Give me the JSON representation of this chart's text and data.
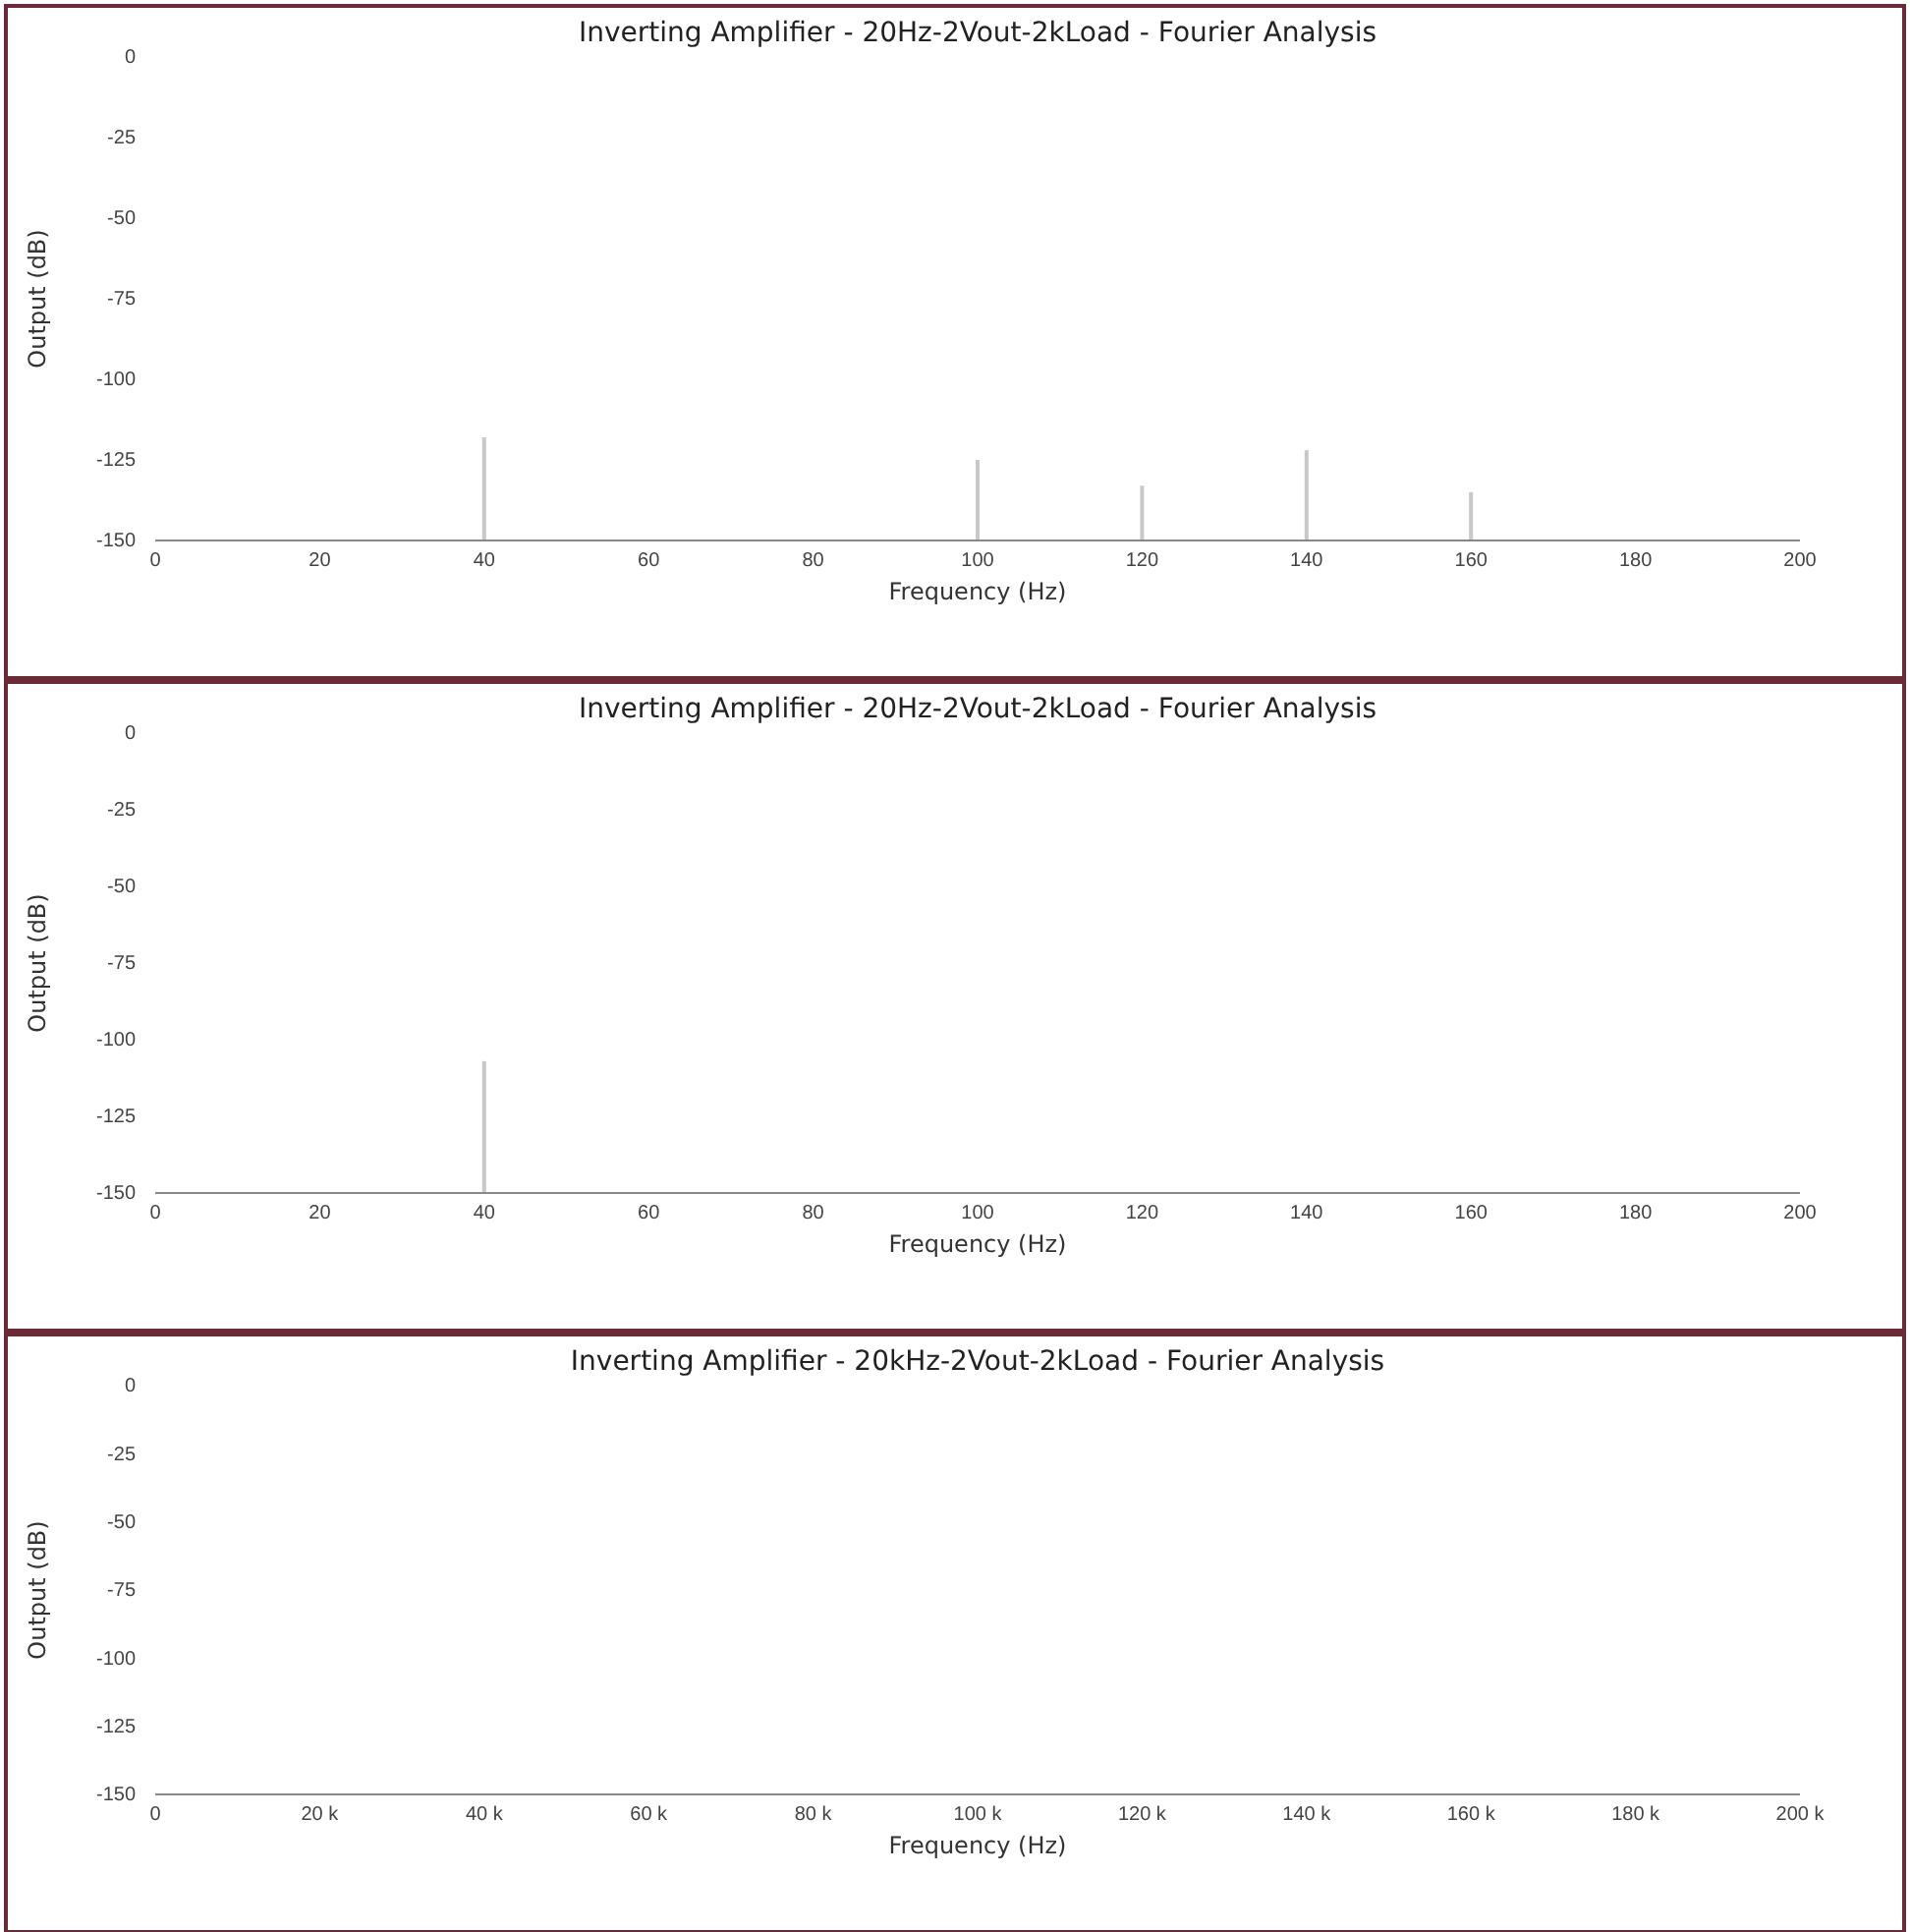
{
  "chart_data": [
    {
      "type": "bar",
      "title": "Inverting Amplifier - 20Hz-2Vout-2kLoad - Fourier Analysis",
      "xlabel": "Frequency (Hz)",
      "ylabel": "Output (dB)",
      "x": [
        40,
        100,
        120,
        140,
        160
      ],
      "base": [
        -150,
        -150,
        -150,
        -150,
        -150
      ],
      "values": [
        32,
        25,
        17,
        28,
        15
      ],
      "color": "#c8c8c8",
      "xlim": [
        0,
        200
      ],
      "xticks": [
        0,
        20,
        40,
        60,
        80,
        100,
        120,
        140,
        160,
        180,
        200
      ],
      "ylim": [
        -150,
        0
      ],
      "yticks": [
        0,
        -25,
        -50,
        -75,
        -100,
        -125,
        -150
      ],
      "grid": false
    },
    {
      "type": "bar",
      "title": "Inverting Amplifier - 20Hz-2Vout-2kLoad - Fourier Analysis",
      "xlabel": "Frequency (Hz)",
      "ylabel": "Output (dB)",
      "x": [
        40
      ],
      "base": [
        -150
      ],
      "values": [
        43
      ],
      "color": "#c8c8c8",
      "xlim": [
        0,
        200
      ],
      "xticks": [
        0,
        20,
        40,
        60,
        80,
        100,
        120,
        140,
        160,
        180,
        200
      ],
      "ylim": [
        -150,
        0
      ],
      "yticks": [
        0,
        -25,
        -50,
        -75,
        -100,
        -125,
        -150
      ],
      "grid": false
    },
    {
      "type": "bar",
      "title": "Inverting Amplifier - 20kHz-2Vout-2kLoad - Fourier Analysis",
      "xlabel": "Frequency (Hz)",
      "ylabel": "Output (dB)",
      "color": "#c8c8c8",
      "xlim": [
        0,
        200000
      ],
      "xticks": [
        0,
        {
          "value": 20000,
          "label": "20 k"
        },
        {
          "value": 40000,
          "label": "40 k"
        },
        {
          "value": 60000,
          "label": "60 k"
        },
        {
          "value": 80000,
          "label": "80 k"
        },
        {
          "value": 100000,
          "label": "100 k"
        },
        {
          "value": 120000,
          "label": "120 k"
        },
        {
          "value": 140000,
          "label": "140 k"
        },
        {
          "value": 160000,
          "label": "160 k"
        },
        {
          "value": 180000,
          "label": "180 k"
        },
        {
          "value": 200000,
          "label": "200 k"
        }
      ],
      "ylim": [
        -150,
        0
      ],
      "yticks": [
        0,
        -25,
        -50,
        -75,
        -100,
        -125,
        -150
      ],
      "grid": false
    }
  ]
}
